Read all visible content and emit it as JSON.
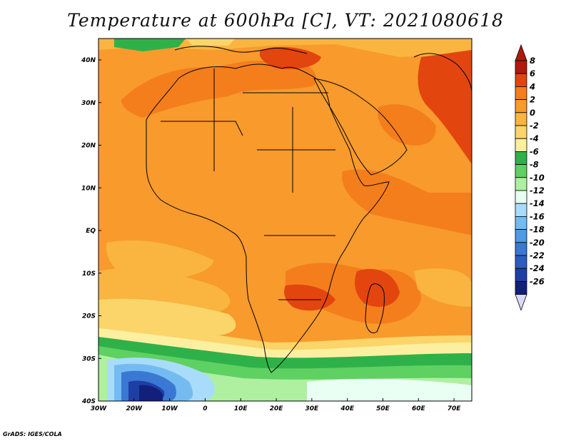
{
  "title": "Temperature at 600hPa [C], VT: 2021080618",
  "credit": "GrADS: IGES/COLA",
  "colors": {
    "c8": "#b01a0c",
    "c6": "#e3450f",
    "c4": "#f47e1c",
    "c2": "#f89a2c",
    "c0": "#f9b540",
    "cm2": "#fbd56a",
    "cm4": "#fcf0a0",
    "cm6": "#2fb14a",
    "cm8": "#5fd062",
    "cm10": "#aef0a0",
    "cm12": "#eafff4",
    "cm14": "#a9dcfa",
    "cm16": "#74bbf2",
    "cm18": "#4d9ae6",
    "cm20": "#3a78d4",
    "cm22": "#2c5cc0",
    "cm24": "#1e3fa6",
    "cm26": "#12207a",
    "below": "#dcd8fa"
  },
  "map": {
    "x_labels": [
      "30W",
      "20W",
      "10W",
      "0",
      "10E",
      "20E",
      "30E",
      "40E",
      "50E",
      "60E",
      "70E"
    ],
    "y_labels": [
      "40N",
      "30N",
      "20N",
      "10N",
      "EQ",
      "10S",
      "20S",
      "30S",
      "40S"
    ]
  },
  "colorbar": {
    "labels": [
      "8",
      "6",
      "4",
      "2",
      "0",
      "-2",
      "-4",
      "-6",
      "-8",
      "-10",
      "-12",
      "-14",
      "-16",
      "-18",
      "-20",
      "-22",
      "-24",
      "-26"
    ]
  }
}
